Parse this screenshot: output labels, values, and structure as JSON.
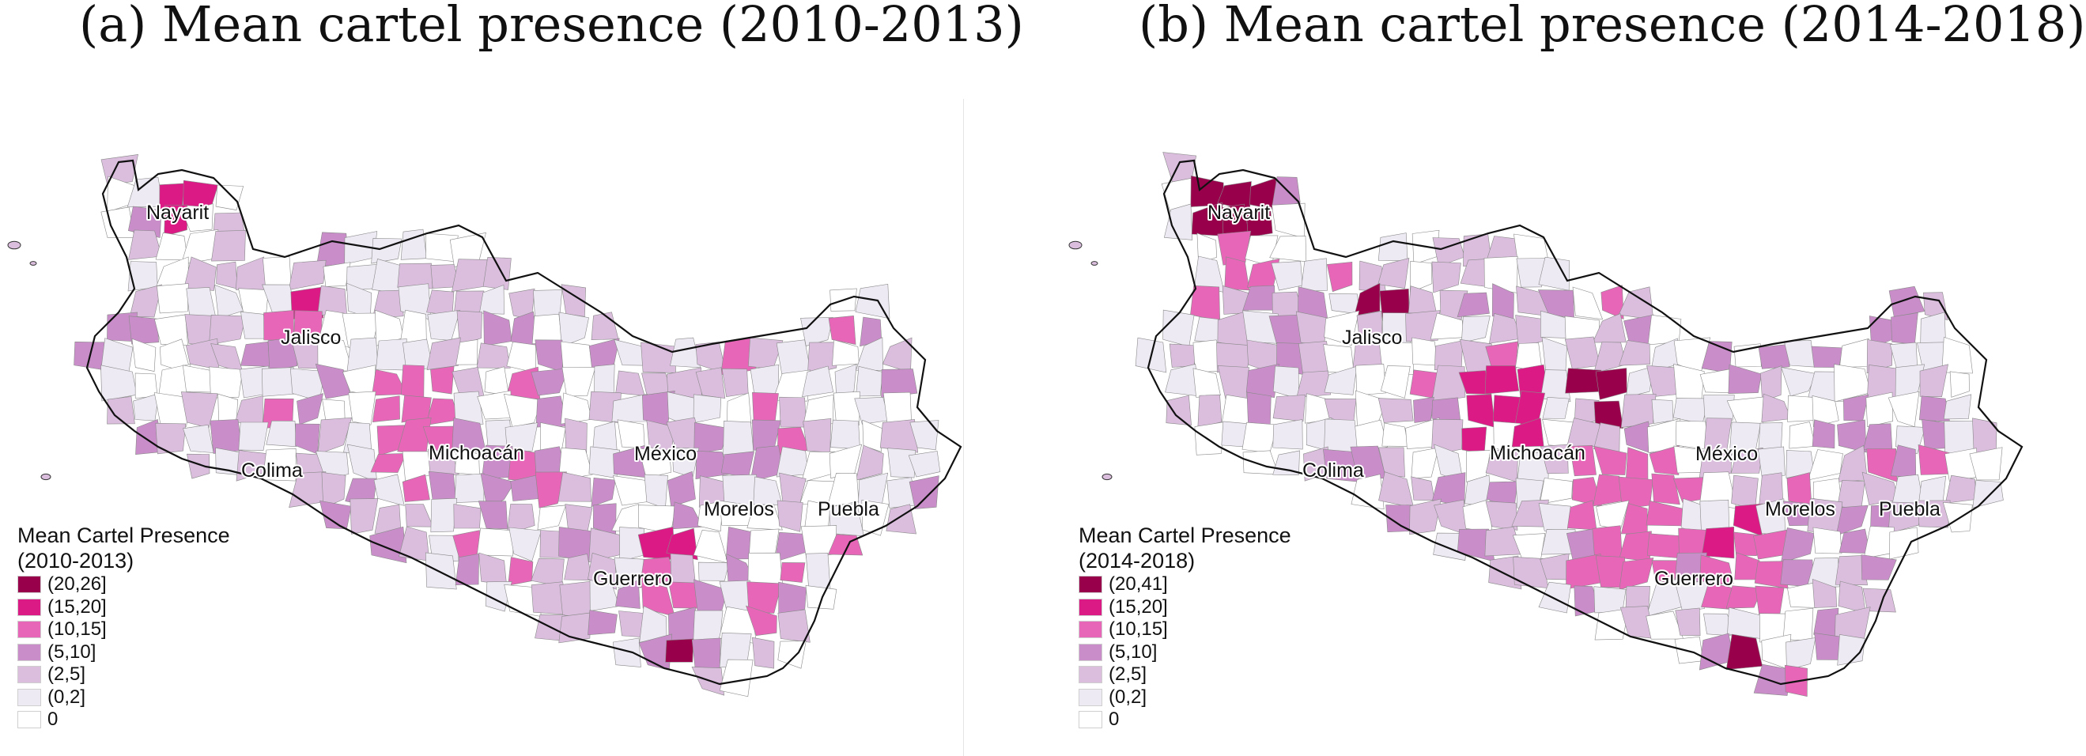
{
  "panels": [
    {
      "title": "(a) Mean cartel presence (2010-2013)",
      "legend_title_line1": "Mean Cartel Presence",
      "legend_title_line2": "(2010-2013)",
      "legend": [
        {
          "label": "(20,26]",
          "color": "#99004c"
        },
        {
          "label": "(15,20]",
          "color": "#dc1a85"
        },
        {
          "label": "(10,15]",
          "color": "#e766b8"
        },
        {
          "label": "(5,10]",
          "color": "#c98ec9"
        },
        {
          "label": "(2,5]",
          "color": "#dbbede"
        },
        {
          "label": "(0,2]",
          "color": "#eeeaf4"
        },
        {
          "label": "0",
          "color": "#ffffff"
        }
      ],
      "state_labels": [
        "Nayarit",
        "Jalisco",
        "Colima",
        "Michoacán",
        "México",
        "Morelos",
        "Puebla",
        "Guerrero"
      ]
    },
    {
      "title": "(b) Mean cartel presence (2014-2018)",
      "legend_title_line1": "Mean Cartel Presence",
      "legend_title_line2": "(2014-2018)",
      "legend": [
        {
          "label": "(20,41]",
          "color": "#99004c"
        },
        {
          "label": "(15,20]",
          "color": "#dc1a85"
        },
        {
          "label": "(10,15]",
          "color": "#e766b8"
        },
        {
          "label": "(5,10]",
          "color": "#c98ec9"
        },
        {
          "label": "(2,5]",
          "color": "#dbbede"
        },
        {
          "label": "(0,2]",
          "color": "#eeeaf4"
        },
        {
          "label": "0",
          "color": "#ffffff"
        }
      ],
      "state_labels": [
        "Nayarit",
        "Jalisco",
        "Colima",
        "Michoacán",
        "México",
        "Morelos",
        "Puebla",
        "Guerrero"
      ]
    }
  ]
}
